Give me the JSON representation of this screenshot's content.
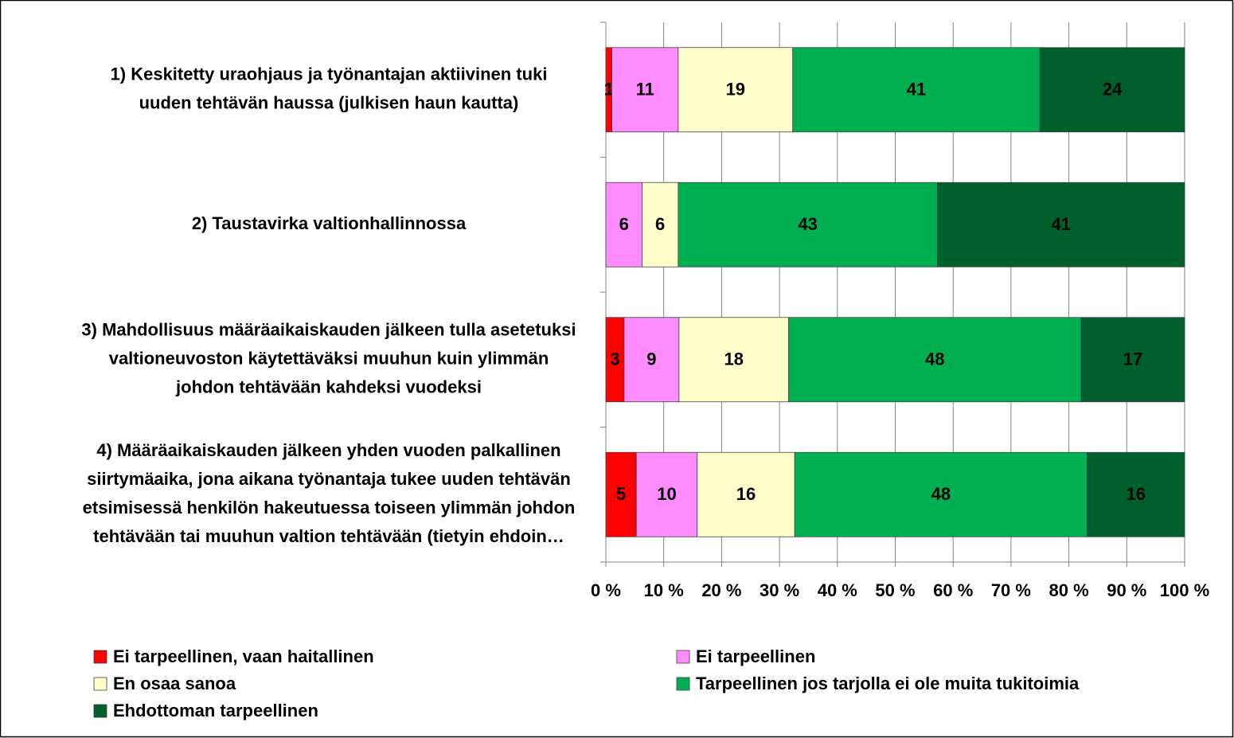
{
  "chart_data": {
    "type": "bar",
    "orientation": "horizontal",
    "stacking": "percent",
    "categories": [
      [
        "1) Keskitetty uraohjaus ja työnantajan aktiivinen tuki",
        "uuden tehtävän haussa (julkisen haun kautta)"
      ],
      [
        "2) Taustavirka valtionhallinnossa"
      ],
      [
        "3) Mahdollisuus määräaikaiskauden jälkeen tulla asetetuksi",
        "valtioneuvoston käytettäväksi muuhun kuin ylimmän",
        "johdon tehtävään kahdeksi vuodeksi"
      ],
      [
        "4) Määräaikaiskauden jälkeen yhden vuoden palkallinen",
        "siirtymäaika, jona aikana työnantaja tukee uuden tehtävän",
        "etsimisessä henkilön hakeutuessa toiseen ylimmän johdon",
        "tehtävään tai muuhun valtion tehtävään (tietyin ehdoin…"
      ]
    ],
    "series": [
      {
        "name": "Ei tarpeellinen, vaan haitallinen",
        "color": "#ff0000",
        "values": [
          1,
          null,
          3,
          5
        ]
      },
      {
        "name": "Ei tarpeellinen",
        "color": "#ff8cff",
        "values": [
          11,
          6,
          9,
          10
        ]
      },
      {
        "name": "En osaa sanoa",
        "color": "#ffffcc",
        "values": [
          19,
          6,
          18,
          16
        ]
      },
      {
        "name": "Tarpeellinen jos tarjolla ei ole muita tukitoimia",
        "color": "#00b050",
        "values": [
          41,
          43,
          48,
          48
        ]
      },
      {
        "name": "Ehdottoman tarpeellinen",
        "color": "#00602b",
        "values": [
          24,
          41,
          17,
          16
        ]
      }
    ],
    "xlim": [
      0,
      100
    ],
    "xticks": [
      {
        "value": 0,
        "label": "0 %"
      },
      {
        "value": 10,
        "label": "10 %"
      },
      {
        "value": 20,
        "label": "20 %"
      },
      {
        "value": 30,
        "label": "30 %"
      },
      {
        "value": 40,
        "label": "40 %"
      },
      {
        "value": 50,
        "label": "50 %"
      },
      {
        "value": 60,
        "label": "60 %"
      },
      {
        "value": 70,
        "label": "70 %"
      },
      {
        "value": 80,
        "label": "80 %"
      },
      {
        "value": 90,
        "label": "90 %"
      },
      {
        "value": 100,
        "label": "100 %"
      }
    ],
    "grid": true,
    "legend": "bottom"
  }
}
